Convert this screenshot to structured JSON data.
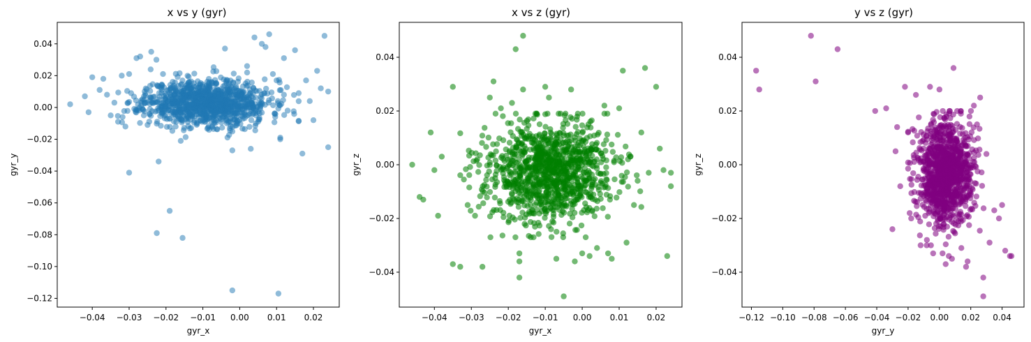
{
  "chart_data": [
    {
      "type": "scatter",
      "title": "x vs y (gyr)",
      "xlabel": "gyr_x",
      "ylabel": "gyr_y",
      "xlim": [
        -0.0495,
        0.027
      ],
      "ylim": [
        -0.1255,
        0.0535
      ],
      "xticks": [
        -0.04,
        -0.03,
        -0.02,
        -0.01,
        0.0,
        0.01,
        0.02
      ],
      "xtick_labels": [
        "−0.04",
        "−0.03",
        "−0.02",
        "−0.01",
        "0.00",
        "0.01",
        "0.02"
      ],
      "yticks": [
        -0.12,
        -0.1,
        -0.08,
        -0.06,
        -0.04,
        -0.02,
        0.0,
        0.02,
        0.04
      ],
      "ytick_labels": [
        "−0.12",
        "−0.10",
        "−0.08",
        "−0.06",
        "−0.04",
        "−0.02",
        "0.00",
        "0.02",
        "0.04"
      ],
      "color": "#1f77b4",
      "alpha": 0.5,
      "cluster": {
        "center": [
          -0.009,
          0.003
        ],
        "spread": [
          0.0085,
          0.0072
        ],
        "count": 1100,
        "bounds_x": [
          -0.036,
          0.016
        ],
        "bounds_y": [
          -0.02,
          0.032
        ],
        "seed": 11
      },
      "points": [
        [
          -0.046,
          0.002
        ],
        [
          -0.042,
          0.007
        ],
        [
          -0.041,
          -0.003
        ],
        [
          -0.04,
          0.019
        ],
        [
          -0.038,
          0.011
        ],
        [
          -0.037,
          0.018
        ],
        [
          -0.036,
          0.008
        ],
        [
          -0.035,
          -0.005
        ],
        [
          -0.034,
          0.003
        ],
        [
          -0.033,
          -0.009
        ],
        [
          -0.032,
          0.02
        ],
        [
          -0.031,
          -0.012
        ],
        [
          -0.03,
          -0.041
        ],
        [
          -0.03,
          0.021
        ],
        [
          -0.028,
          0.031
        ],
        [
          -0.027,
          0.032
        ],
        [
          -0.025,
          -0.011
        ],
        [
          -0.024,
          0.035
        ],
        [
          -0.022,
          -0.034
        ],
        [
          -0.0225,
          -0.079
        ],
        [
          -0.019,
          -0.065
        ],
        [
          -0.0155,
          -0.082
        ],
        [
          -0.016,
          -0.021
        ],
        [
          -0.002,
          -0.115
        ],
        [
          0.0105,
          -0.117
        ],
        [
          -0.004,
          0.037
        ],
        [
          -0.002,
          -0.027
        ],
        [
          0.002,
          0.026
        ],
        [
          0.003,
          -0.026
        ],
        [
          0.004,
          0.044
        ],
        [
          0.006,
          0.04
        ],
        [
          0.007,
          0.038
        ],
        [
          0.008,
          0.046
        ],
        [
          0.009,
          0.021
        ],
        [
          0.01,
          0.017
        ],
        [
          0.011,
          -0.019
        ],
        [
          0.011,
          -0.02
        ],
        [
          0.012,
          0.031
        ],
        [
          0.012,
          0.008
        ],
        [
          0.013,
          -0.002
        ],
        [
          0.015,
          0.036
        ],
        [
          0.016,
          0.009
        ],
        [
          0.017,
          -0.029
        ],
        [
          0.018,
          0.017
        ],
        [
          0.019,
          0.004
        ],
        [
          0.02,
          -0.008
        ],
        [
          0.021,
          0.023
        ],
        [
          0.022,
          0.012
        ],
        [
          0.023,
          0.045
        ],
        [
          0.024,
          0.01
        ],
        [
          0.024,
          -0.025
        ]
      ]
    },
    {
      "type": "scatter",
      "title": "x vs z (gyr)",
      "xlabel": "gyr_x",
      "ylabel": "gyr_z",
      "xlim": [
        -0.0495,
        0.027
      ],
      "ylim": [
        -0.053,
        0.053
      ],
      "xticks": [
        -0.04,
        -0.03,
        -0.02,
        -0.01,
        0.0,
        0.01,
        0.02
      ],
      "xtick_labels": [
        "−0.04",
        "−0.03",
        "−0.02",
        "−0.01",
        "0.00",
        "0.01",
        "0.02"
      ],
      "yticks": [
        -0.04,
        -0.02,
        0.0,
        0.02,
        0.04
      ],
      "ytick_labels": [
        "−0.04",
        "−0.02",
        "0.00",
        "0.02",
        "0.04"
      ],
      "color": "#008000",
      "alpha": 0.55,
      "cluster": {
        "center": [
          -0.009,
          -0.003
        ],
        "spread": [
          0.0085,
          0.0095
        ],
        "count": 1100,
        "bounds_x": [
          -0.033,
          0.016
        ],
        "bounds_y": [
          -0.027,
          0.019
        ],
        "seed": 23
      },
      "points": [
        [
          -0.046,
          0.0
        ],
        [
          -0.044,
          -0.012
        ],
        [
          -0.043,
          -0.013
        ],
        [
          -0.041,
          0.012
        ],
        [
          -0.04,
          -0.002
        ],
        [
          -0.039,
          -0.019
        ],
        [
          -0.038,
          0.003
        ],
        [
          -0.035,
          0.029
        ],
        [
          -0.035,
          -0.037
        ],
        [
          -0.033,
          -0.038
        ],
        [
          -0.031,
          -0.015
        ],
        [
          -0.029,
          -0.019
        ],
        [
          -0.027,
          -0.038
        ],
        [
          -0.025,
          0.025
        ],
        [
          -0.024,
          0.031
        ],
        [
          -0.022,
          0.021
        ],
        [
          -0.019,
          0.023
        ],
        [
          -0.018,
          0.043
        ],
        [
          -0.017,
          -0.033
        ],
        [
          -0.017,
          -0.036
        ],
        [
          -0.017,
          -0.042
        ],
        [
          -0.016,
          0.048
        ],
        [
          -0.016,
          0.028
        ],
        [
          -0.01,
          0.029
        ],
        [
          -0.009,
          0.025
        ],
        [
          -0.007,
          -0.035
        ],
        [
          -0.005,
          -0.049
        ],
        [
          -0.003,
          0.028
        ],
        [
          -0.002,
          -0.036
        ],
        [
          0.0,
          -0.033
        ],
        [
          0.002,
          -0.034
        ],
        [
          0.004,
          -0.031
        ],
        [
          0.006,
          0.022
        ],
        [
          0.007,
          -0.033
        ],
        [
          0.008,
          -0.035
        ],
        [
          0.01,
          0.021
        ],
        [
          0.011,
          0.035
        ],
        [
          0.012,
          -0.029
        ],
        [
          0.013,
          0.003
        ],
        [
          0.014,
          -0.015
        ],
        [
          0.015,
          -0.006
        ],
        [
          0.016,
          0.012
        ],
        [
          0.017,
          0.036
        ],
        [
          0.018,
          -0.003
        ],
        [
          0.02,
          0.029
        ],
        [
          0.021,
          0.006
        ],
        [
          0.022,
          -0.002
        ],
        [
          0.023,
          -0.034
        ],
        [
          0.024,
          -0.008
        ],
        [
          0.024,
          -0.003
        ]
      ]
    },
    {
      "type": "scatter",
      "title": "y vs z (gyr)",
      "xlabel": "gyr_y",
      "ylabel": "gyr_z",
      "xlim": [
        -0.126,
        0.054
      ],
      "ylim": [
        -0.053,
        0.053
      ],
      "xticks": [
        -0.12,
        -0.1,
        -0.08,
        -0.06,
        -0.04,
        -0.02,
        0.0,
        0.02,
        0.04
      ],
      "xtick_labels": [
        "−0.12",
        "−0.10",
        "−0.08",
        "−0.06",
        "−0.04",
        "−0.02",
        "0.00",
        "0.02",
        "0.04"
      ],
      "yticks": [
        -0.04,
        -0.02,
        0.0,
        0.02,
        0.04
      ],
      "ytick_labels": [
        "−0.04",
        "−0.02",
        "0.00",
        "0.02",
        "0.04"
      ],
      "color": "#800080",
      "alpha": 0.55,
      "cluster": {
        "center": [
          0.004,
          -0.003
        ],
        "spread": [
          0.0085,
          0.0095
        ],
        "count": 1100,
        "bounds_x": [
          -0.02,
          0.03
        ],
        "bounds_y": [
          -0.03,
          0.02
        ],
        "seed": 37
      },
      "points": [
        [
          -0.117,
          0.035
        ],
        [
          -0.115,
          0.028
        ],
        [
          -0.082,
          0.048
        ],
        [
          -0.079,
          0.031
        ],
        [
          -0.065,
          0.043
        ],
        [
          -0.041,
          0.02
        ],
        [
          -0.034,
          0.021
        ],
        [
          -0.03,
          -0.024
        ],
        [
          -0.028,
          0.005
        ],
        [
          -0.027,
          0.014
        ],
        [
          -0.025,
          -0.008
        ],
        [
          -0.022,
          0.029
        ],
        [
          -0.02,
          0.012
        ],
        [
          -0.019,
          -0.018
        ],
        [
          -0.018,
          -0.02
        ],
        [
          -0.015,
          0.026
        ],
        [
          -0.012,
          -0.03
        ],
        [
          -0.008,
          -0.028
        ],
        [
          -0.006,
          0.029
        ],
        [
          -0.004,
          -0.033
        ],
        [
          0.0,
          0.028
        ],
        [
          0.002,
          -0.033
        ],
        [
          0.004,
          -0.037
        ],
        [
          0.006,
          -0.034
        ],
        [
          0.008,
          -0.035
        ],
        [
          0.009,
          0.036
        ],
        [
          0.014,
          -0.031
        ],
        [
          0.017,
          -0.038
        ],
        [
          0.018,
          -0.036
        ],
        [
          0.022,
          0.022
        ],
        [
          0.024,
          0.015
        ],
        [
          0.026,
          0.025
        ],
        [
          0.028,
          -0.042
        ],
        [
          0.028,
          -0.049
        ],
        [
          0.03,
          0.004
        ],
        [
          0.032,
          -0.029
        ],
        [
          0.035,
          -0.017
        ],
        [
          0.038,
          -0.02
        ],
        [
          0.04,
          -0.015
        ],
        [
          0.042,
          -0.032
        ],
        [
          0.045,
          -0.034
        ],
        [
          0.046,
          -0.034
        ]
      ]
    }
  ]
}
